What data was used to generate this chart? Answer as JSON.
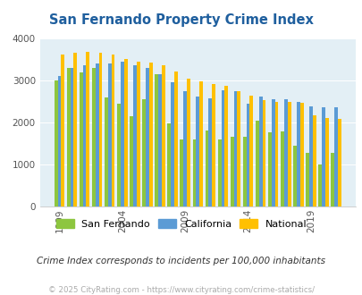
{
  "title": "San Fernando Property Crime Index",
  "subtitle": "Crime Index corresponds to incidents per 100,000 inhabitants",
  "copyright": "© 2025 CityRating.com - https://www.cityrating.com/crime-statistics/",
  "years": [
    1999,
    2000,
    2001,
    2002,
    2003,
    2004,
    2005,
    2006,
    2007,
    2008,
    2009,
    2010,
    2011,
    2012,
    2013,
    2014,
    2015,
    2016,
    2017,
    2018,
    2019,
    2020,
    2021
  ],
  "san_fernando": [
    3000,
    3300,
    3200,
    3300,
    2600,
    2450,
    2150,
    2550,
    3150,
    1980,
    1600,
    1600,
    1800,
    1600,
    1650,
    1650,
    2050,
    1770,
    1780,
    1450,
    1270,
    1000,
    1280
  ],
  "california": [
    3100,
    3300,
    3350,
    3400,
    3400,
    3450,
    3350,
    3300,
    3150,
    2960,
    2750,
    2620,
    2580,
    2760,
    2750,
    2450,
    2620,
    2560,
    2550,
    2480,
    2390,
    2360,
    2370
  ],
  "national": [
    3620,
    3650,
    3680,
    3650,
    3610,
    3510,
    3450,
    3420,
    3370,
    3220,
    3040,
    2970,
    2920,
    2870,
    2740,
    2630,
    2530,
    2480,
    2480,
    2470,
    2170,
    2100,
    2090
  ],
  "colors": {
    "san_fernando": "#8dc63f",
    "california": "#5b9bd5",
    "national": "#ffc000",
    "plot_bg": "#e3eff5"
  },
  "ylim": [
    0,
    4000
  ],
  "yticks": [
    0,
    1000,
    2000,
    3000,
    4000
  ],
  "xtick_positions": [
    1999,
    2004,
    2009,
    2014,
    2019
  ],
  "title_color": "#1f5f9e",
  "subtitle_color": "#333333",
  "copyright_color": "#aaaaaa",
  "legend_labels": [
    "San Fernando",
    "California",
    "National"
  ]
}
